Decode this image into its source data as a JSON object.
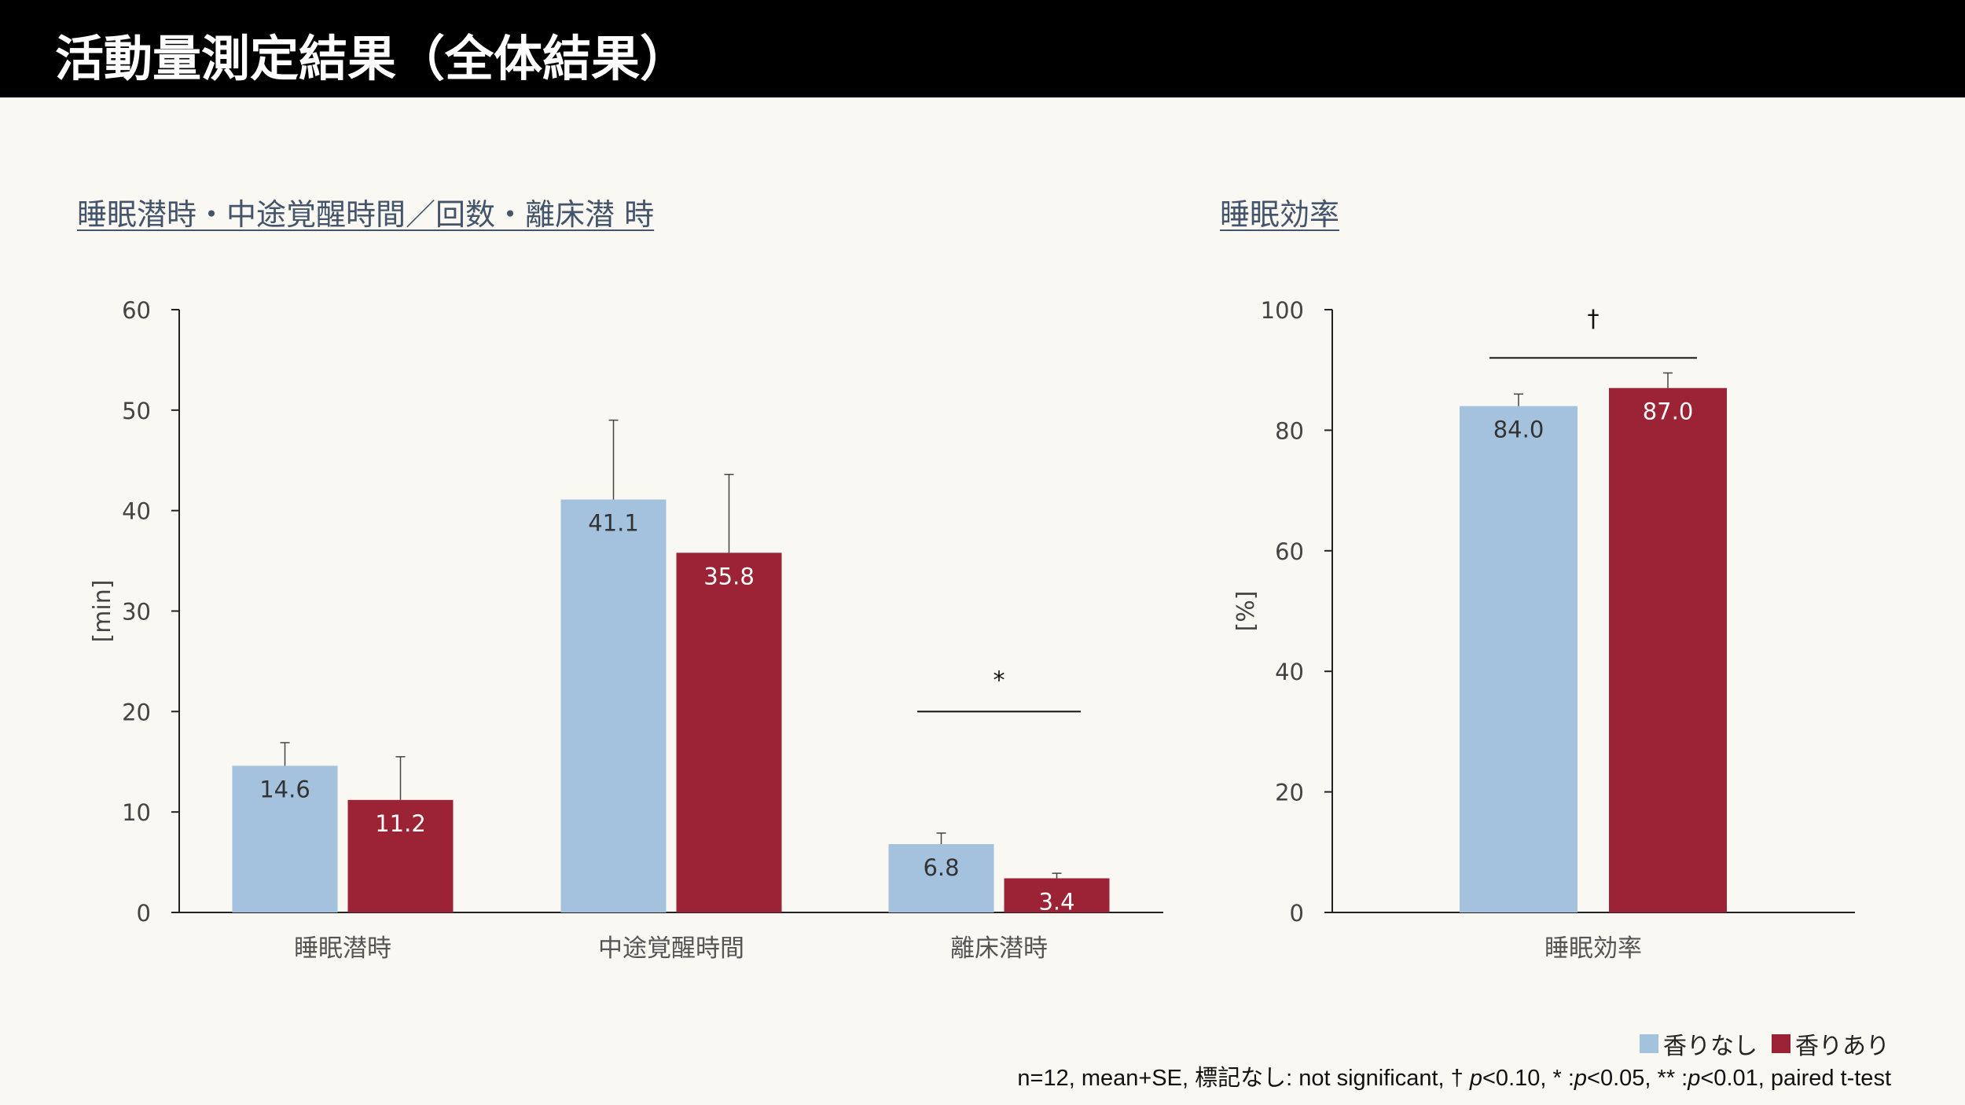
{
  "header": {
    "title": "活動量測定結果（全体結果）"
  },
  "colors": {
    "no_scent": "#a4c2de",
    "with_scent": "#9b2335",
    "title_text": "#44546a"
  },
  "legend": [
    {
      "name": "香りなし",
      "color": "#a4c2de"
    },
    {
      "name": "香りあり",
      "color": "#9b2335"
    }
  ],
  "footnote": {
    "prefix": "n=12, mean+SE, 標記なし: not significant, † ",
    "p1": "p",
    "t1": "<0.10, * :",
    "p2": "p",
    "t2": "<0.05, ** :",
    "p3": "p",
    "t3": "<0.01, paired t-test"
  },
  "chart_data": [
    {
      "type": "bar",
      "title": "睡眠潜時・中途覚醒時間／回数・離床潜 時",
      "ylabel": "[min]",
      "ylim": [
        0,
        60
      ],
      "yticks": [
        "0",
        "10",
        "20",
        "30",
        "40",
        "50",
        "60"
      ],
      "categories": [
        "睡眠潜時",
        "中途覚醒時間",
        "離床潜時"
      ],
      "series": [
        {
          "name": "香りなし",
          "values": [
            14.6,
            41.1,
            6.8
          ],
          "labels": [
            "14.6",
            "41.1",
            "6.8"
          ],
          "se": [
            2.3,
            7.9,
            1.1
          ]
        },
        {
          "name": "香りあり",
          "values": [
            11.2,
            35.8,
            3.4
          ],
          "labels": [
            "11.2",
            "35.8",
            "3.4"
          ],
          "se": [
            4.3,
            7.8,
            0.5
          ]
        }
      ],
      "significance": [
        {
          "category": 2,
          "mark": "*",
          "level": 20
        }
      ],
      "grid": false
    },
    {
      "type": "bar",
      "title": "睡眠効率",
      "ylabel": "[%]",
      "ylim": [
        0,
        100
      ],
      "yticks": [
        "0",
        "20",
        "40",
        "60",
        "80",
        "100"
      ],
      "categories": [
        "睡眠効率"
      ],
      "series": [
        {
          "name": "香りなし",
          "values": [
            84.0
          ],
          "labels": [
            "84.0"
          ],
          "se": [
            2.0
          ]
        },
        {
          "name": "香りあり",
          "values": [
            87.0
          ],
          "labels": [
            "87.0"
          ],
          "se": [
            2.5
          ]
        }
      ],
      "significance": [
        {
          "category": 0,
          "mark": "†",
          "level": 92
        }
      ],
      "grid": false
    }
  ]
}
